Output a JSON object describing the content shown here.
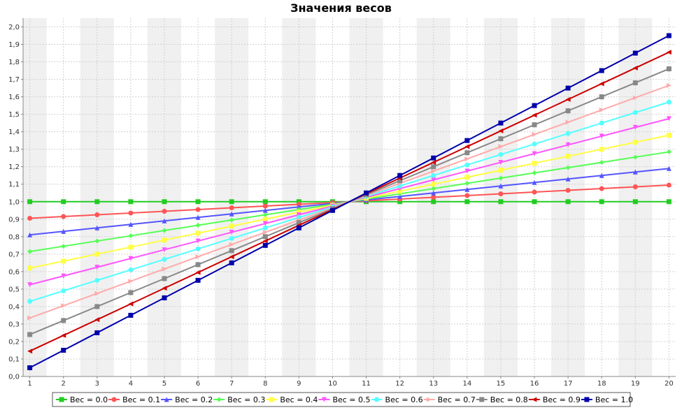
{
  "chart_data": {
    "type": "line",
    "title": "Значения весов",
    "xlabel": "",
    "ylabel": "",
    "x": [
      1,
      2,
      3,
      4,
      5,
      6,
      7,
      8,
      9,
      10,
      11,
      12,
      13,
      14,
      15,
      16,
      17,
      18,
      19,
      20
    ],
    "xlim": [
      0.8,
      20.2
    ],
    "ylim": [
      0.0,
      2.05
    ],
    "y_ticks": [
      "0,0",
      "0,1",
      "0,2",
      "0,3",
      "0,4",
      "0,5",
      "0,6",
      "0,7",
      "0,8",
      "0,9",
      "1,0",
      "1,1",
      "1,2",
      "1,3",
      "1,4",
      "1,5",
      "1,6",
      "1,7",
      "1,8",
      "1,9",
      "2,0"
    ],
    "grid": true,
    "legend_position": "bottom",
    "series": [
      {
        "name": "Вес = 0.0",
        "weight": 0.0,
        "color": "#22cc22",
        "marker": "square"
      },
      {
        "name": "Вес = 0.1",
        "weight": 0.1,
        "color": "#ff5555",
        "marker": "circle"
      },
      {
        "name": "Вес = 0.2",
        "weight": 0.2,
        "color": "#5555ff",
        "marker": "triangle-up"
      },
      {
        "name": "Вес = 0.3",
        "weight": 0.3,
        "color": "#55ff55",
        "marker": "diamond"
      },
      {
        "name": "Вес = 0.4",
        "weight": 0.4,
        "color": "#ffff44",
        "marker": "square"
      },
      {
        "name": "Вес = 0.5",
        "weight": 0.5,
        "color": "#ff55ff",
        "marker": "triangle-down"
      },
      {
        "name": "Вес = 0.6",
        "weight": 0.6,
        "color": "#55ffff",
        "marker": "circle"
      },
      {
        "name": "Вес = 0.7",
        "weight": 0.7,
        "color": "#ffaaaa",
        "marker": "triangle-right"
      },
      {
        "name": "Вес = 0.8",
        "weight": 0.8,
        "color": "#888888",
        "marker": "square"
      },
      {
        "name": "Вес = 0.9",
        "weight": 0.9,
        "color": "#cc0000",
        "marker": "triangle-left"
      },
      {
        "name": "Вес = 1.0",
        "weight": 1.0,
        "color": "#0000aa",
        "marker": "square"
      }
    ]
  }
}
